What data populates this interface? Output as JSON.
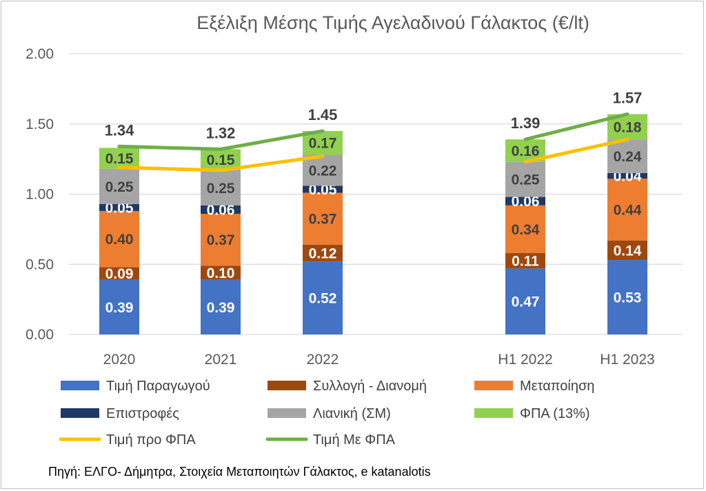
{
  "chart_data": {
    "type": "bar",
    "stacked": true,
    "title": "Εξέλιξη Μέσης Τιμής Αγελαδινού Γάλακτος (€/lt)",
    "categories": [
      "2020",
      "2021",
      "2022",
      "H1 2022",
      "H1 2023"
    ],
    "ylim": [
      0,
      2
    ],
    "yticks": [
      "0.00",
      "0.50",
      "1.00",
      "1.50",
      "2.00"
    ],
    "grid": true,
    "legend_position": "bottom",
    "series": [
      {
        "name": "Τιμή Παραγωγού",
        "color": "#4472C4",
        "label_color": "#ffffff",
        "values": [
          0.39,
          0.39,
          0.52,
          0.47,
          0.53
        ],
        "labels": [
          "0.39",
          "0.39",
          "0.52",
          "0.47",
          "0.53"
        ]
      },
      {
        "name": "Συλλογή - Διανομή",
        "color": "#9E480E",
        "label_color": "#ffffff",
        "values": [
          0.09,
          0.1,
          0.12,
          0.11,
          0.14
        ],
        "labels": [
          "0.09",
          "0.10",
          "0.12",
          "0.11",
          "0.14"
        ]
      },
      {
        "name": "Μεταποίηση",
        "color": "#ED7D31",
        "label_color": "#404040",
        "values": [
          0.4,
          0.37,
          0.37,
          0.34,
          0.44
        ],
        "labels": [
          "0.40",
          "0.37",
          "0.37",
          "0.34",
          "0.44"
        ]
      },
      {
        "name": "Επιστροφές",
        "color": "#203864",
        "label_color": "#ffffff",
        "values": [
          0.05,
          0.06,
          0.05,
          0.06,
          0.04
        ],
        "labels": [
          "0.05",
          "0.06",
          "0.05",
          "0.06",
          "0.04"
        ]
      },
      {
        "name": "Λιανική (ΣΜ)",
        "color": "#A5A5A5",
        "label_color": "#404040",
        "values": [
          0.25,
          0.25,
          0.22,
          0.25,
          0.24
        ],
        "labels": [
          "0.25",
          "0.25",
          "0.22",
          "0.25",
          "0.24"
        ]
      },
      {
        "name": "ΦΠΑ (13%)",
        "color": "#92D050",
        "label_color": "#404040",
        "values": [
          0.15,
          0.15,
          0.17,
          0.16,
          0.18
        ],
        "labels": [
          "0.15",
          "0.15",
          "0.17",
          "0.16",
          "0.18"
        ]
      }
    ],
    "lines": [
      {
        "name": "Τιμή προ ΦΠΑ",
        "color": "#FFC000",
        "values": [
          1.19,
          1.17,
          1.27,
          1.23,
          1.39
        ]
      },
      {
        "name": "Τιμή Με ΦΠΑ",
        "color": "#70AD47",
        "values": [
          1.34,
          1.32,
          1.45,
          1.39,
          1.57
        ],
        "labels": [
          "1.34",
          "1.32",
          "1.45",
          "1.39",
          "1.57"
        ]
      }
    ],
    "source": "Πηγή: ΕΛΓΟ- Δήμητρα, Στοιχεία Μεταποιητών Γάλακτος, e katanalotis"
  }
}
